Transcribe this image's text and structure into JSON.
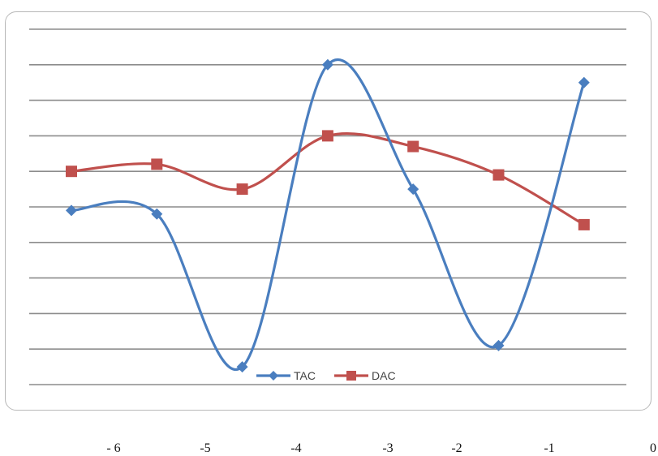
{
  "chart_data": {
    "type": "line",
    "smooth": true,
    "grid": "horizontal",
    "y_axis_labels": false,
    "ylim": [
      0,
      10
    ],
    "x_tick_labels": [
      "- 6",
      "-5",
      "-4",
      "-3",
      "-2",
      "-1",
      "0"
    ],
    "x": [
      1,
      2,
      3,
      4,
      5,
      6,
      7
    ],
    "series": [
      {
        "name": "TAC",
        "color": "#4a7ebf",
        "marker": "diamond",
        "values": [
          4.9,
          4.8,
          0.5,
          9.0,
          5.5,
          1.1,
          8.5
        ]
      },
      {
        "name": "DAC",
        "color": "#c0504d",
        "marker": "square",
        "values": [
          6.0,
          6.2,
          5.5,
          7.0,
          6.7,
          5.9,
          4.5
        ]
      }
    ],
    "legend": {
      "position": "bottom-inside",
      "entries": [
        "TAC",
        "DAC"
      ]
    }
  }
}
